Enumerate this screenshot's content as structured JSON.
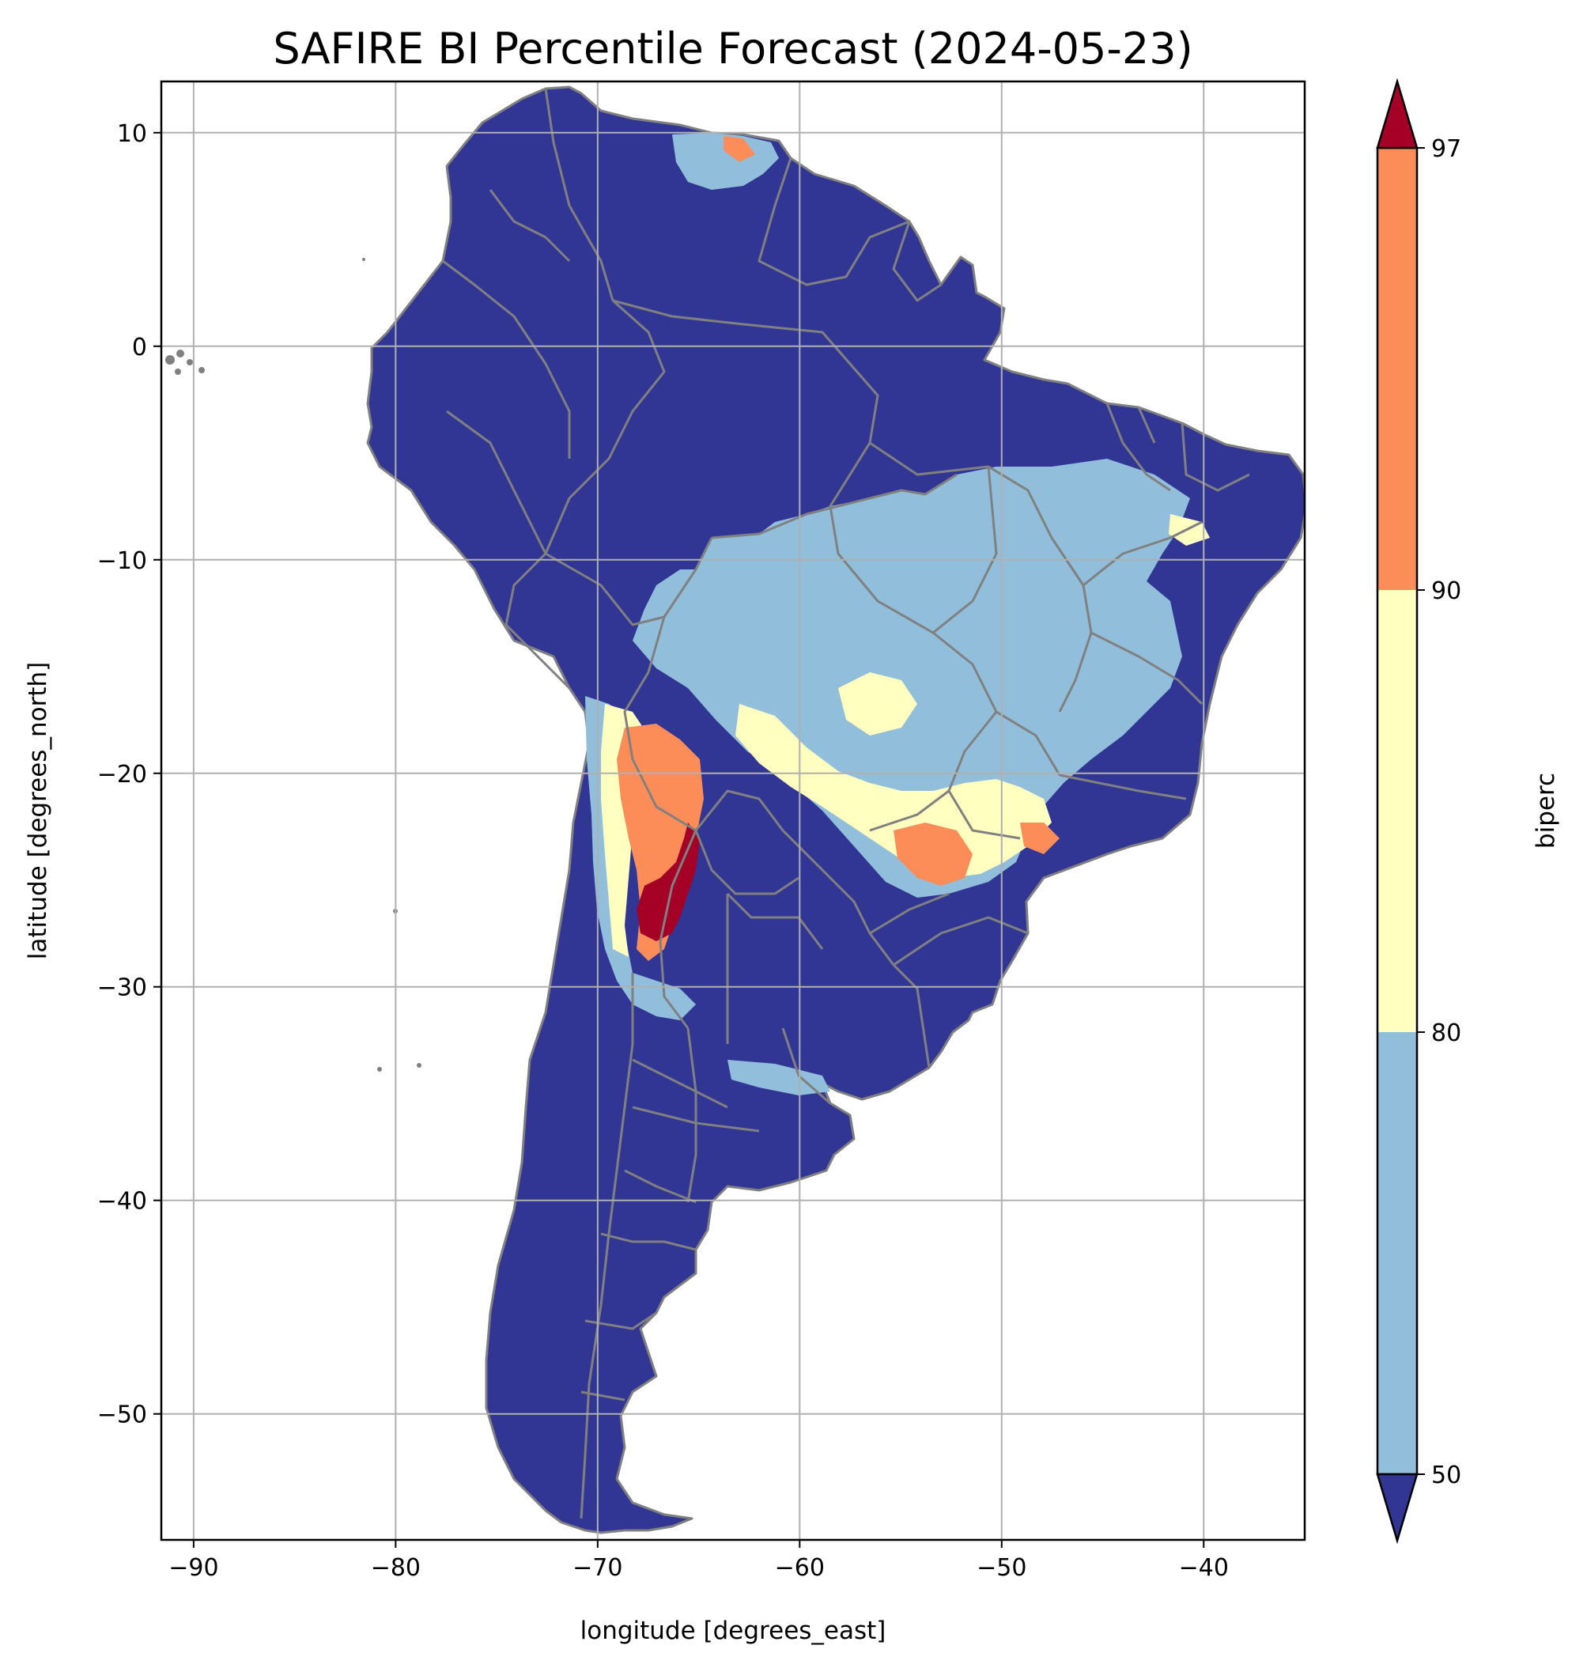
{
  "map": {
    "title": "SAFIRE BI Percentile Forecast (2024-05-23)",
    "xlabel": "longitude [degrees_east]",
    "ylabel": "latitude [degrees_north]",
    "lon_range": [
      -91.6,
      -35.0
    ],
    "lat_range": [
      -55.9,
      12.4
    ],
    "x_ticks": [
      {
        "value": -90,
        "label": "−90"
      },
      {
        "value": -80,
        "label": "−80"
      },
      {
        "value": -70,
        "label": "−70"
      },
      {
        "value": -60,
        "label": "−60"
      },
      {
        "value": -50,
        "label": "−50"
      },
      {
        "value": -40,
        "label": "−40"
      }
    ],
    "y_ticks": [
      {
        "value": 10,
        "label": "10"
      },
      {
        "value": 0,
        "label": "0"
      },
      {
        "value": -10,
        "label": "−10"
      },
      {
        "value": -20,
        "label": "−20"
      },
      {
        "value": -30,
        "label": "−30"
      },
      {
        "value": -40,
        "label": "−40"
      },
      {
        "value": -50,
        "label": "−50"
      }
    ],
    "grid": true,
    "colors": {
      "below_50": "#313695",
      "50_80": "#91bfdb",
      "80_90": "#ffffbf",
      "90_97": "#fc8d59",
      "above_97": "#a50026",
      "borders": "#808080",
      "grid": "#b0b0b0"
    },
    "regions": [
      {
        "class": "50_80",
        "lon": -54,
        "lat": -12,
        "desc": "central Brazil light-blue area"
      },
      {
        "class": "80_90",
        "lon": -55,
        "lat": -22,
        "desc": "south-central Brazil yellow band"
      },
      {
        "class": "90_97",
        "lon": -53.5,
        "lat": -24,
        "desc": "Parana orange patch"
      },
      {
        "class": "90_97",
        "lon": -67.5,
        "lat": -20.5,
        "desc": "Andes orange patch"
      },
      {
        "class": "above_97",
        "lon": -67,
        "lat": -26,
        "desc": "NW Argentina red patch"
      },
      {
        "class": "50_80",
        "lon": -66,
        "lat": 9,
        "desc": "Venezuela coast light-blue"
      }
    ]
  },
  "colorbar": {
    "label": "biperc",
    "extend": "both",
    "boundaries": [
      50,
      80,
      90,
      97
    ],
    "tick_labels": [
      "50",
      "80",
      "90",
      "97"
    ],
    "segments": [
      {
        "from": 50,
        "to": 80,
        "color": "#91bfdb"
      },
      {
        "from": 80,
        "to": 90,
        "color": "#ffffbf"
      },
      {
        "from": 90,
        "to": 97,
        "color": "#fc8d59"
      }
    ],
    "under_color": "#313695",
    "over_color": "#a50026"
  }
}
